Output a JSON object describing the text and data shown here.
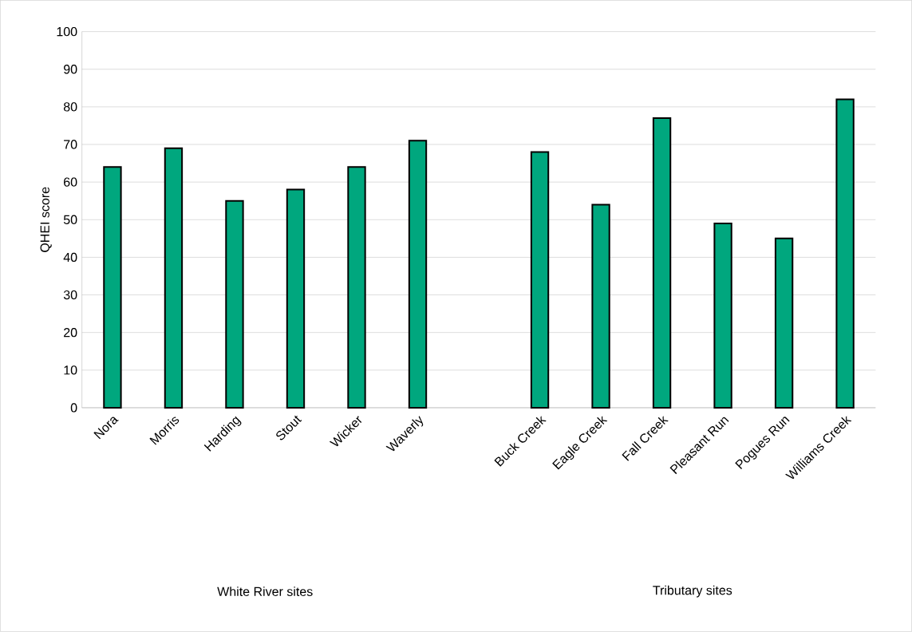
{
  "chart_data": {
    "type": "bar",
    "ylabel": "QHEI score",
    "categories": [
      "Nora",
      "Morris",
      "Harding",
      "Stout",
      "Wicker",
      "Waverly",
      null,
      "Buck Creek",
      "Eagle Creek",
      "Fall Creek",
      "Pleasant Run",
      "Pogues Run",
      "Williams Creek"
    ],
    "values": [
      64,
      69,
      55,
      58,
      64,
      71,
      null,
      68,
      54,
      77,
      49,
      45,
      82
    ],
    "color": "#00a77e",
    "ylim": [
      0,
      100
    ],
    "yticks": [
      0,
      10,
      20,
      30,
      40,
      50,
      60,
      70,
      80,
      90,
      100
    ],
    "grid": "y",
    "annotations": [
      "White River sites",
      "Tributary sites"
    ]
  }
}
